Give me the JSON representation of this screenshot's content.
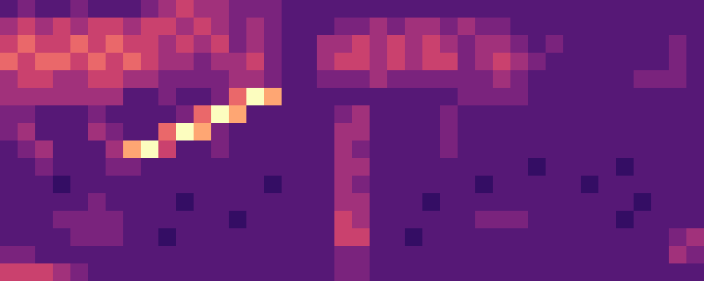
{
  "chart_data": {
    "type": "heatmap",
    "tick_labels": false,
    "color_range": [
      0,
      9
    ],
    "cells": [
      [
        3,
        4,
        3,
        3,
        4,
        3,
        3,
        3,
        4,
        5,
        6,
        5,
        5,
        4,
        4,
        4,
        3,
        3,
        3,
        3,
        3,
        3,
        3,
        3,
        3,
        3,
        3,
        3,
        3,
        3,
        3,
        3,
        3,
        3,
        3,
        3,
        3,
        3,
        3,
        3
      ],
      [
        5,
        6,
        5,
        6,
        5,
        6,
        6,
        5,
        6,
        6,
        5,
        6,
        5,
        4,
        5,
        4,
        3,
        3,
        3,
        4,
        4,
        5,
        4,
        5,
        5,
        4,
        5,
        4,
        4,
        3,
        3,
        3,
        3,
        3,
        3,
        3,
        3,
        3,
        3,
        3
      ],
      [
        6,
        7,
        6,
        6,
        7,
        6,
        7,
        6,
        6,
        5,
        6,
        5,
        6,
        4,
        5,
        4,
        3,
        3,
        5,
        5,
        6,
        5,
        6,
        5,
        6,
        5,
        4,
        5,
        5,
        4,
        3,
        4,
        3,
        3,
        3,
        3,
        3,
        3,
        4,
        3
      ],
      [
        7,
        6,
        7,
        7,
        6,
        7,
        6,
        7,
        6,
        5,
        5,
        4,
        5,
        5,
        6,
        4,
        3,
        3,
        5,
        6,
        6,
        5,
        6,
        5,
        6,
        6,
        4,
        5,
        6,
        5,
        4,
        3,
        3,
        3,
        3,
        3,
        3,
        3,
        4,
        3
      ],
      [
        5,
        6,
        6,
        5,
        5,
        6,
        6,
        5,
        5,
        4,
        4,
        4,
        4,
        5,
        5,
        4,
        3,
        3,
        4,
        4,
        4,
        5,
        4,
        4,
        4,
        4,
        4,
        4,
        5,
        4,
        3,
        3,
        3,
        3,
        3,
        3,
        4,
        4,
        4,
        3
      ],
      [
        5,
        5,
        5,
        5,
        5,
        5,
        5,
        3,
        3,
        4,
        3,
        3,
        4,
        7,
        9,
        8,
        3,
        3,
        3,
        3,
        3,
        3,
        3,
        3,
        3,
        3,
        4,
        4,
        4,
        4,
        3,
        3,
        3,
        3,
        3,
        3,
        3,
        3,
        3,
        3
      ],
      [
        4,
        4,
        3,
        3,
        3,
        4,
        3,
        3,
        3,
        3,
        4,
        7,
        9,
        8,
        3,
        3,
        3,
        3,
        3,
        4,
        5,
        3,
        3,
        3,
        3,
        4,
        3,
        3,
        3,
        3,
        3,
        3,
        3,
        3,
        3,
        3,
        3,
        3,
        3,
        3
      ],
      [
        4,
        5,
        3,
        3,
        3,
        5,
        4,
        3,
        3,
        7,
        9,
        8,
        4,
        3,
        3,
        3,
        3,
        3,
        3,
        5,
        5,
        3,
        3,
        3,
        3,
        4,
        3,
        3,
        3,
        3,
        3,
        3,
        3,
        3,
        3,
        3,
        3,
        3,
        3,
        3
      ],
      [
        3,
        4,
        5,
        3,
        3,
        3,
        5,
        8,
        9,
        6,
        3,
        3,
        4,
        3,
        3,
        3,
        3,
        3,
        3,
        5,
        4,
        3,
        3,
        3,
        3,
        4,
        3,
        3,
        3,
        3,
        3,
        3,
        3,
        3,
        3,
        3,
        3,
        3,
        3,
        3
      ],
      [
        3,
        3,
        4,
        3,
        3,
        3,
        4,
        4,
        3,
        3,
        3,
        3,
        3,
        3,
        3,
        3,
        3,
        3,
        3,
        5,
        5,
        3,
        3,
        3,
        3,
        3,
        3,
        3,
        3,
        3,
        2,
        3,
        3,
        3,
        3,
        2,
        3,
        3,
        3,
        3
      ],
      [
        3,
        3,
        3,
        2,
        3,
        3,
        3,
        3,
        3,
        3,
        3,
        3,
        3,
        3,
        3,
        2,
        3,
        3,
        3,
        5,
        4,
        3,
        3,
        3,
        3,
        3,
        3,
        2,
        3,
        3,
        3,
        3,
        3,
        2,
        3,
        3,
        3,
        3,
        3,
        3
      ],
      [
        3,
        3,
        3,
        3,
        3,
        4,
        3,
        3,
        3,
        3,
        2,
        3,
        3,
        3,
        3,
        3,
        3,
        3,
        3,
        5,
        5,
        3,
        3,
        3,
        2,
        3,
        3,
        3,
        3,
        3,
        3,
        3,
        3,
        3,
        3,
        3,
        2,
        3,
        3,
        3
      ],
      [
        3,
        3,
        3,
        4,
        4,
        4,
        4,
        3,
        3,
        3,
        3,
        3,
        3,
        2,
        3,
        3,
        3,
        3,
        3,
        6,
        5,
        3,
        3,
        3,
        3,
        3,
        3,
        4,
        4,
        4,
        3,
        3,
        3,
        3,
        3,
        2,
        3,
        3,
        3,
        3
      ],
      [
        3,
        3,
        3,
        3,
        4,
        4,
        4,
        3,
        3,
        2,
        3,
        3,
        3,
        3,
        3,
        3,
        3,
        3,
        3,
        6,
        6,
        3,
        3,
        2,
        3,
        3,
        3,
        3,
        3,
        3,
        3,
        3,
        3,
        3,
        3,
        3,
        3,
        3,
        4,
        5
      ],
      [
        4,
        4,
        3,
        3,
        3,
        3,
        3,
        3,
        3,
        3,
        3,
        3,
        3,
        3,
        3,
        3,
        3,
        3,
        3,
        4,
        4,
        3,
        3,
        3,
        3,
        3,
        3,
        3,
        3,
        3,
        3,
        3,
        3,
        3,
        3,
        3,
        3,
        3,
        5,
        4
      ],
      [
        6,
        6,
        6,
        5,
        4,
        3,
        3,
        3,
        3,
        3,
        3,
        3,
        3,
        3,
        3,
        3,
        3,
        3,
        3,
        4,
        4,
        3,
        3,
        3,
        3,
        3,
        3,
        3,
        3,
        3,
        3,
        3,
        3,
        3,
        3,
        3,
        3,
        3,
        3,
        3
      ]
    ]
  }
}
